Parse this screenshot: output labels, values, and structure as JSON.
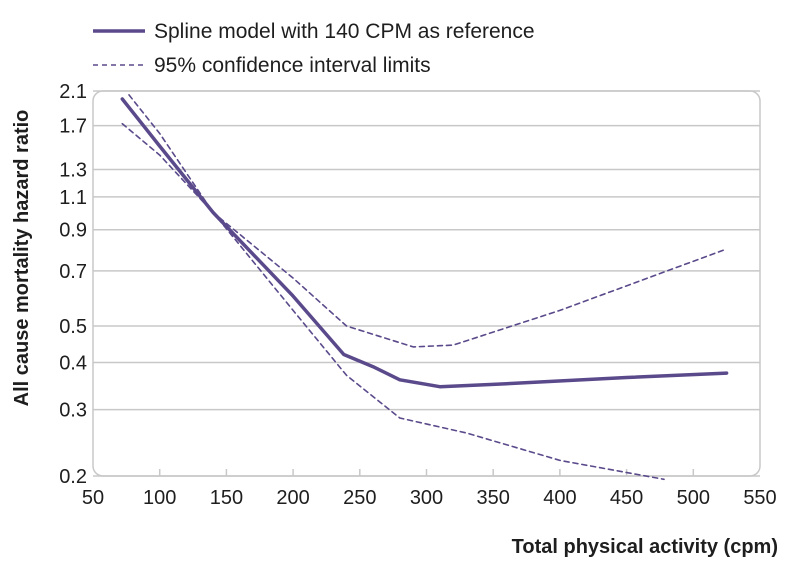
{
  "chart_data": {
    "type": "line",
    "title": "",
    "xlabel": "Total physical activity (cpm)",
    "ylabel": "All cause mortality hazard ratio",
    "xlim": [
      50,
      550
    ],
    "ylim": [
      0.2,
      2.1
    ],
    "yscale": "log",
    "xticks": [
      50,
      100,
      150,
      200,
      250,
      300,
      350,
      400,
      450,
      500,
      550
    ],
    "yticks": [
      0.2,
      0.3,
      0.4,
      0.5,
      0.7,
      0.9,
      1.1,
      1.3,
      1.7,
      2.1
    ],
    "ytick_labels": [
      "0.2",
      "0.3",
      "0.4",
      "0.5",
      "0.7",
      "0.9",
      "1.1",
      "1.3",
      "1.7",
      "2.1"
    ],
    "grid": true,
    "legend_position": "top-left",
    "series": [
      {
        "name": "Spline model with 140 CPM as reference",
        "style": "solid",
        "color": "#5b4a8b",
        "points": [
          [
            72,
            2.0
          ],
          [
            100,
            1.5
          ],
          [
            140,
            1.0
          ],
          [
            200,
            0.6
          ],
          [
            238,
            0.42
          ],
          [
            260,
            0.39
          ],
          [
            280,
            0.36
          ],
          [
            310,
            0.345
          ],
          [
            350,
            0.35
          ],
          [
            450,
            0.365
          ],
          [
            525,
            0.375
          ]
        ]
      },
      {
        "name": "95% confidence interval limits",
        "style": "dashed",
        "color": "#5b4a8b",
        "role": "upper",
        "points": [
          [
            77,
            2.05
          ],
          [
            100,
            1.62
          ],
          [
            140,
            1.0
          ],
          [
            200,
            0.67
          ],
          [
            240,
            0.5
          ],
          [
            290,
            0.44
          ],
          [
            320,
            0.445
          ],
          [
            400,
            0.55
          ],
          [
            525,
            0.8
          ]
        ]
      },
      {
        "name": "95% confidence interval limits",
        "style": "dashed",
        "color": "#5b4a8b",
        "role": "lower",
        "points": [
          [
            72,
            1.72
          ],
          [
            100,
            1.42
          ],
          [
            140,
            1.0
          ],
          [
            200,
            0.55
          ],
          [
            240,
            0.37
          ],
          [
            280,
            0.285
          ],
          [
            330,
            0.26
          ],
          [
            400,
            0.22
          ],
          [
            478,
            0.196
          ]
        ]
      }
    ]
  },
  "legend": {
    "items": [
      {
        "label": "Spline model with 140 CPM as reference",
        "style": "solid"
      },
      {
        "label": "95% confidence interval limits",
        "style": "dashed"
      }
    ]
  },
  "colors": {
    "line": "#5b4a8b",
    "grid": "#c8c8c8",
    "text": "#1e1e1e"
  }
}
